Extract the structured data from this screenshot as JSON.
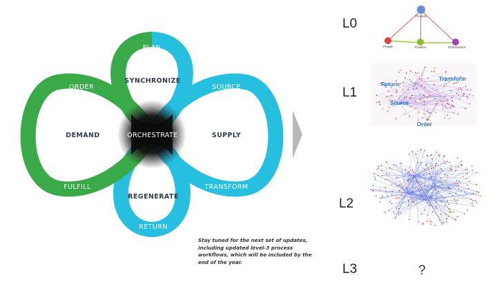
{
  "diagram": {
    "center": "ORCHESTRATE",
    "top_outer": "PLAN",
    "top_inner": "SYNCHRONIZE",
    "left_outer_top": "ORDER",
    "left_inner": "DEMAND",
    "left_outer_bottom": "FULFILL",
    "right_outer_top": "SOURCE",
    "right_inner": "SUPPLY",
    "right_outer_bottom": "TRANSFORM",
    "bottom_inner": "REGENERATE",
    "bottom_outer": "RETURN",
    "colors": {
      "green": "#3aaa48",
      "cyan": "#27bfe0",
      "arrow": "#b8b8b8"
    }
  },
  "note": "Stay tuned for the next set of updates, including updated level-3 process workflows, which will be included by the end of the year.",
  "levels": [
    {
      "label": "L0"
    },
    {
      "label": "L1"
    },
    {
      "label": "L2"
    },
    {
      "label": "L3",
      "value": "?"
    }
  ],
  "l0_graph": {
    "nodes": [
      "Process",
      "People",
      "Practice",
      "Performance"
    ]
  },
  "l1_graph": {
    "labels": [
      "Return",
      "Transform",
      "Source",
      "Order"
    ]
  }
}
